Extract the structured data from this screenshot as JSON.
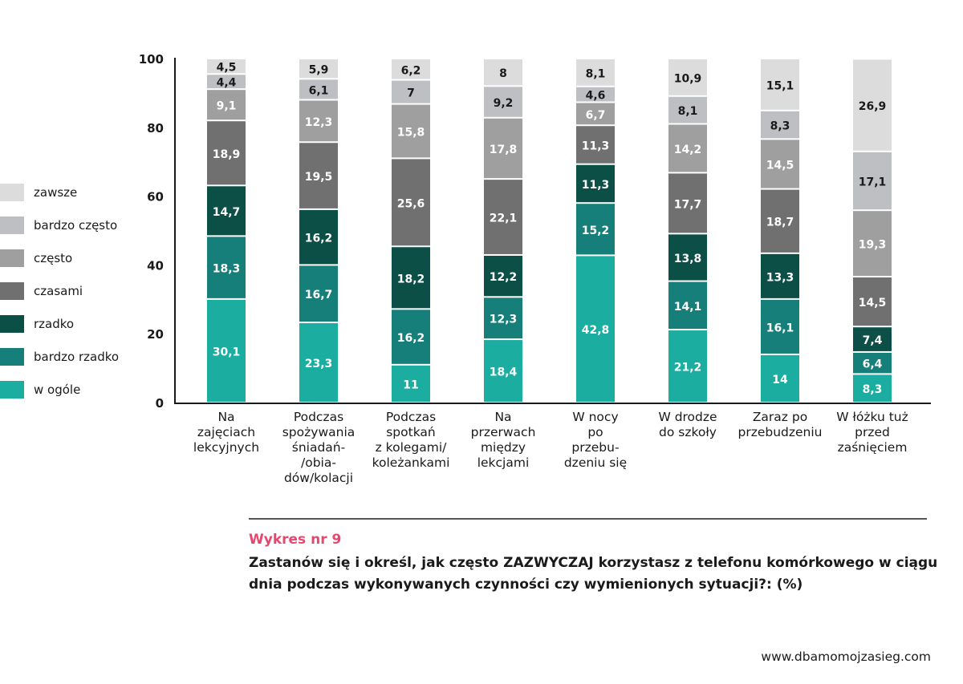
{
  "chart_data": {
    "type": "bar",
    "stacked": true,
    "title": "Zastanów się i określ, jak często ZAZWYCZAJ korzystasz z telefonu komórkowego w ciągu dnia podczas wykonywanych czynności czy wymienionych sytuacji?: (%)",
    "figure_label": "Wykres nr 9",
    "ylim": [
      0,
      100
    ],
    "yticks": [
      "0",
      "20",
      "40",
      "60",
      "80",
      "100"
    ],
    "categories": [
      "Na zajęciach lekcyjnych",
      "Podczas spożywania śniadań-/obia-dów/kolacji",
      "Podczas spotkań z kolegami/ koleżankami",
      "Na przerwach między lekcjami",
      "W nocy po przebu-dzeniu się",
      "W drodze do szkoły",
      "Zaraz po przebudzeniu",
      "W łóżku tuż przed zaśnięciem"
    ],
    "category_lines": [
      [
        "Na",
        "zajęciach",
        "lekcyjnych"
      ],
      [
        "Podczas",
        "spożywania",
        "śniadań-",
        "/obia-",
        "dów/kolacji"
      ],
      [
        "Podczas",
        "spotkań",
        "z kolegami/",
        "koleżankami"
      ],
      [
        "Na",
        "przerwach",
        "między",
        "lekcjami"
      ],
      [
        "W nocy",
        "po",
        "przebu-",
        "dzeniu się"
      ],
      [
        "W drodze",
        "do szkoły"
      ],
      [
        "Zaraz po",
        "przebudzeniu"
      ],
      [
        "W łóżku tuż",
        "przed",
        "zaśnięciem"
      ]
    ],
    "series": [
      {
        "name": "w ogóle",
        "color": "#1aada0",
        "values": [
          30.1,
          23.3,
          11,
          18.4,
          42.8,
          21.2,
          14,
          8.3
        ],
        "labels": [
          "30,1",
          "23,3",
          "11",
          "18,4",
          "42,8",
          "21,2",
          "14",
          "8,3"
        ]
      },
      {
        "name": "bardzo rzadko",
        "color": "#177f79",
        "values": [
          18.3,
          16.7,
          16.2,
          12.3,
          15.2,
          14.1,
          16.1,
          6.4
        ],
        "labels": [
          "18,3",
          "16,7",
          "16,2",
          "12,3",
          "15,2",
          "14,1",
          "16,1",
          "6,4"
        ]
      },
      {
        "name": "rzadko",
        "color": "#0c4f47",
        "values": [
          14.7,
          16.2,
          18.2,
          12.2,
          11.3,
          13.8,
          13.3,
          7.4
        ],
        "labels": [
          "14,7",
          "16,2",
          "18,2",
          "12,2",
          "11,3",
          "13,8",
          "13,3",
          "7,4"
        ]
      },
      {
        "name": "czasami",
        "color": "#707070",
        "values": [
          18.9,
          19.5,
          25.6,
          22.1,
          11.3,
          17.7,
          18.7,
          14.5
        ],
        "labels": [
          "18,9",
          "19,5",
          "25,6",
          "22,1",
          "11,3",
          "17,7",
          "18,7",
          "14,5"
        ]
      },
      {
        "name": "często",
        "color": "#9f9f9f",
        "values": [
          9.1,
          12.3,
          15.8,
          17.8,
          6.7,
          14.2,
          14.5,
          19.3
        ],
        "labels": [
          "9,1",
          "12,3",
          "15,8",
          "17,8",
          "6,7",
          "14,2",
          "14,5",
          "19,3"
        ]
      },
      {
        "name": "bardzo często",
        "color": "#bdbfc3",
        "values": [
          4.4,
          6.1,
          7,
          9.2,
          4.6,
          8.1,
          8.3,
          17.1
        ],
        "labels": [
          "4,4",
          "6,1",
          "7",
          "9,2",
          "4,6",
          "8,1",
          "8,3",
          "17,1"
        ]
      },
      {
        "name": "zawsze",
        "color": "#dcdcdc",
        "values": [
          4.5,
          5.9,
          6.2,
          8,
          8.1,
          10.9,
          15.1,
          26.9
        ],
        "labels": [
          "4,5",
          "5,9",
          "6,2",
          "8",
          "8,1",
          "10,9",
          "15,1",
          "26,9"
        ]
      }
    ]
  },
  "colors": {
    "accent": "#e8466e",
    "text_dark": "#1a1a1a",
    "label_on_dark": "#ffffff"
  },
  "figure": {
    "number": "Wykres nr 9",
    "title": "Zastanów się i określ, jak często ZAZWYCZAJ korzystasz z telefonu komórkowego w ciągu dnia podczas wykonywanych czynności czy wymienionych sytuacji?: (%)"
  },
  "footer": {
    "url": "www.dbamomojzasieg.com"
  }
}
